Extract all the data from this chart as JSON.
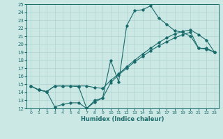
{
  "xlabel": "Humidex (Indice chaleur)",
  "bg_color": "#cce8e5",
  "line_color": "#1a6b6b",
  "grid_color": "#aed4d0",
  "xlim": [
    -0.5,
    23.5
  ],
  "ylim": [
    12,
    25
  ],
  "xticks": [
    0,
    1,
    2,
    3,
    4,
    5,
    6,
    7,
    8,
    9,
    10,
    11,
    12,
    13,
    14,
    15,
    16,
    17,
    18,
    19,
    20,
    21,
    22,
    23
  ],
  "yticks": [
    12,
    13,
    14,
    15,
    16,
    17,
    18,
    19,
    20,
    21,
    22,
    23,
    24,
    25
  ],
  "line1_x": [
    0,
    1,
    2,
    3,
    4,
    5,
    6,
    7,
    8,
    9,
    10,
    11,
    12,
    13,
    14,
    15,
    16,
    17,
    18,
    19,
    20,
    21,
    22,
    23
  ],
  "line1_y": [
    14.8,
    14.3,
    14.1,
    14.8,
    14.8,
    14.8,
    14.7,
    12.0,
    13.0,
    13.3,
    18.0,
    15.3,
    22.3,
    24.2,
    24.3,
    24.8,
    23.3,
    22.5,
    21.7,
    21.5,
    21.0,
    19.5,
    19.5,
    19.0
  ],
  "line2_x": [
    0,
    1,
    2,
    3,
    4,
    5,
    6,
    7,
    8,
    9,
    10,
    11,
    12,
    13,
    14,
    15,
    16,
    17,
    18,
    19,
    20,
    21,
    22,
    23
  ],
  "line2_y": [
    14.8,
    14.3,
    14.1,
    14.8,
    14.8,
    14.8,
    14.8,
    14.8,
    14.6,
    14.5,
    15.5,
    16.3,
    17.2,
    18.0,
    18.8,
    19.5,
    20.2,
    20.8,
    21.3,
    21.6,
    21.8,
    21.2,
    20.5,
    19.0
  ],
  "line3_x": [
    0,
    1,
    2,
    3,
    4,
    5,
    6,
    7,
    8,
    9,
    10,
    11,
    12,
    13,
    14,
    15,
    16,
    17,
    18,
    19,
    20,
    21,
    22,
    23
  ],
  "line3_y": [
    14.8,
    14.3,
    14.1,
    12.2,
    12.5,
    12.7,
    12.7,
    12.0,
    12.8,
    13.3,
    15.2,
    16.2,
    17.0,
    17.8,
    18.5,
    19.2,
    19.8,
    20.3,
    20.8,
    21.2,
    21.5,
    19.5,
    19.4,
    19.0
  ]
}
